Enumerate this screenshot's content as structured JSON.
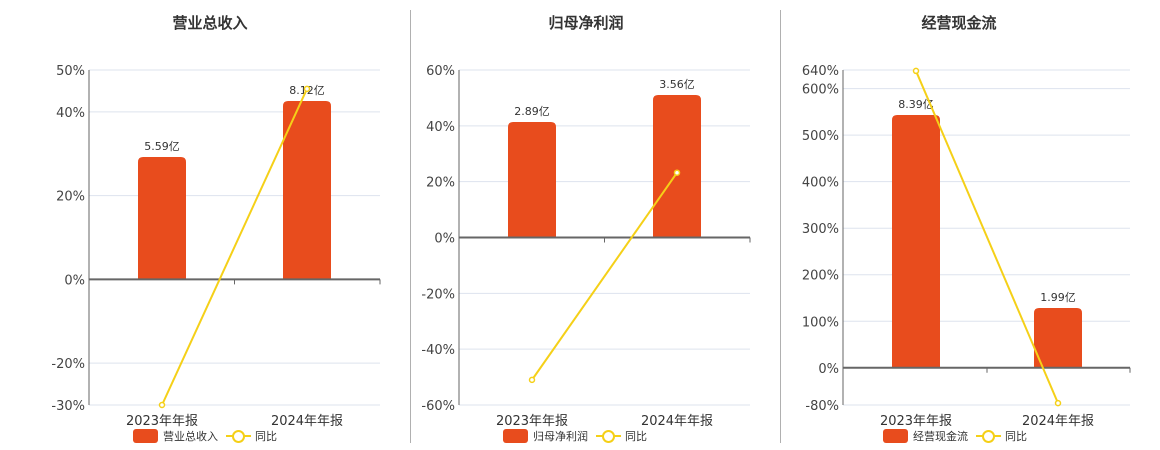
{
  "colors": {
    "bar": "#e84c1d",
    "line": "#f5d018",
    "grid": "#dde3ee",
    "axis": "#666666"
  },
  "panels": [
    {
      "title": "营业总收入",
      "legend_bar": "营业总收入",
      "legend_line": "同比"
    },
    {
      "title": "归母净利润",
      "legend_bar": "归母净利润",
      "legend_line": "同比"
    },
    {
      "title": "经营现金流",
      "legend_bar": "经营现金流",
      "legend_line": "同比"
    }
  ],
  "chart_data": [
    {
      "type": "bar+line",
      "title": "营业总收入",
      "categories": [
        "2023年年报",
        "2024年年报"
      ],
      "series": [
        {
          "name": "营业总收入",
          "type": "bar",
          "values": [
            5.59,
            8.12
          ],
          "labels": [
            "5.59亿",
            "8.12亿"
          ],
          "unit": "亿"
        },
        {
          "name": "同比",
          "type": "line",
          "values": [
            -30.0,
            45.5
          ],
          "unit": "%"
        }
      ],
      "yticks": [
        "50%",
        "40%",
        "20%",
        "0%",
        "-20%",
        "-30%"
      ],
      "ylim": [
        -30,
        50
      ],
      "grid": true,
      "legend_position": "bottom"
    },
    {
      "type": "bar+line",
      "title": "归母净利润",
      "categories": [
        "2023年年报",
        "2024年年报"
      ],
      "series": [
        {
          "name": "归母净利润",
          "type": "bar",
          "values": [
            2.89,
            3.56
          ],
          "labels": [
            "2.89亿",
            "3.56亿"
          ],
          "unit": "亿"
        },
        {
          "name": "同比",
          "type": "line",
          "values": [
            -51.0,
            23.2
          ],
          "unit": "%"
        }
      ],
      "yticks": [
        "60%",
        "40%",
        "20%",
        "0%",
        "-20%",
        "-40%",
        "-60%"
      ],
      "ylim": [
        -60,
        60
      ],
      "grid": true,
      "legend_position": "bottom"
    },
    {
      "type": "bar+line",
      "title": "经营现金流",
      "categories": [
        "2023年年报",
        "2024年年报"
      ],
      "series": [
        {
          "name": "经营现金流",
          "type": "bar",
          "values": [
            8.39,
            1.99
          ],
          "labels": [
            "8.39亿",
            "1.99亿"
          ],
          "unit": "亿"
        },
        {
          "name": "同比",
          "type": "line",
          "values": [
            638.0,
            -76.0
          ],
          "unit": "%"
        }
      ],
      "yticks": [
        "640%",
        "600%",
        "500%",
        "400%",
        "300%",
        "200%",
        "100%",
        "0%",
        "-80%"
      ],
      "ylim": [
        -80,
        640
      ],
      "grid": true,
      "legend_position": "bottom"
    }
  ]
}
